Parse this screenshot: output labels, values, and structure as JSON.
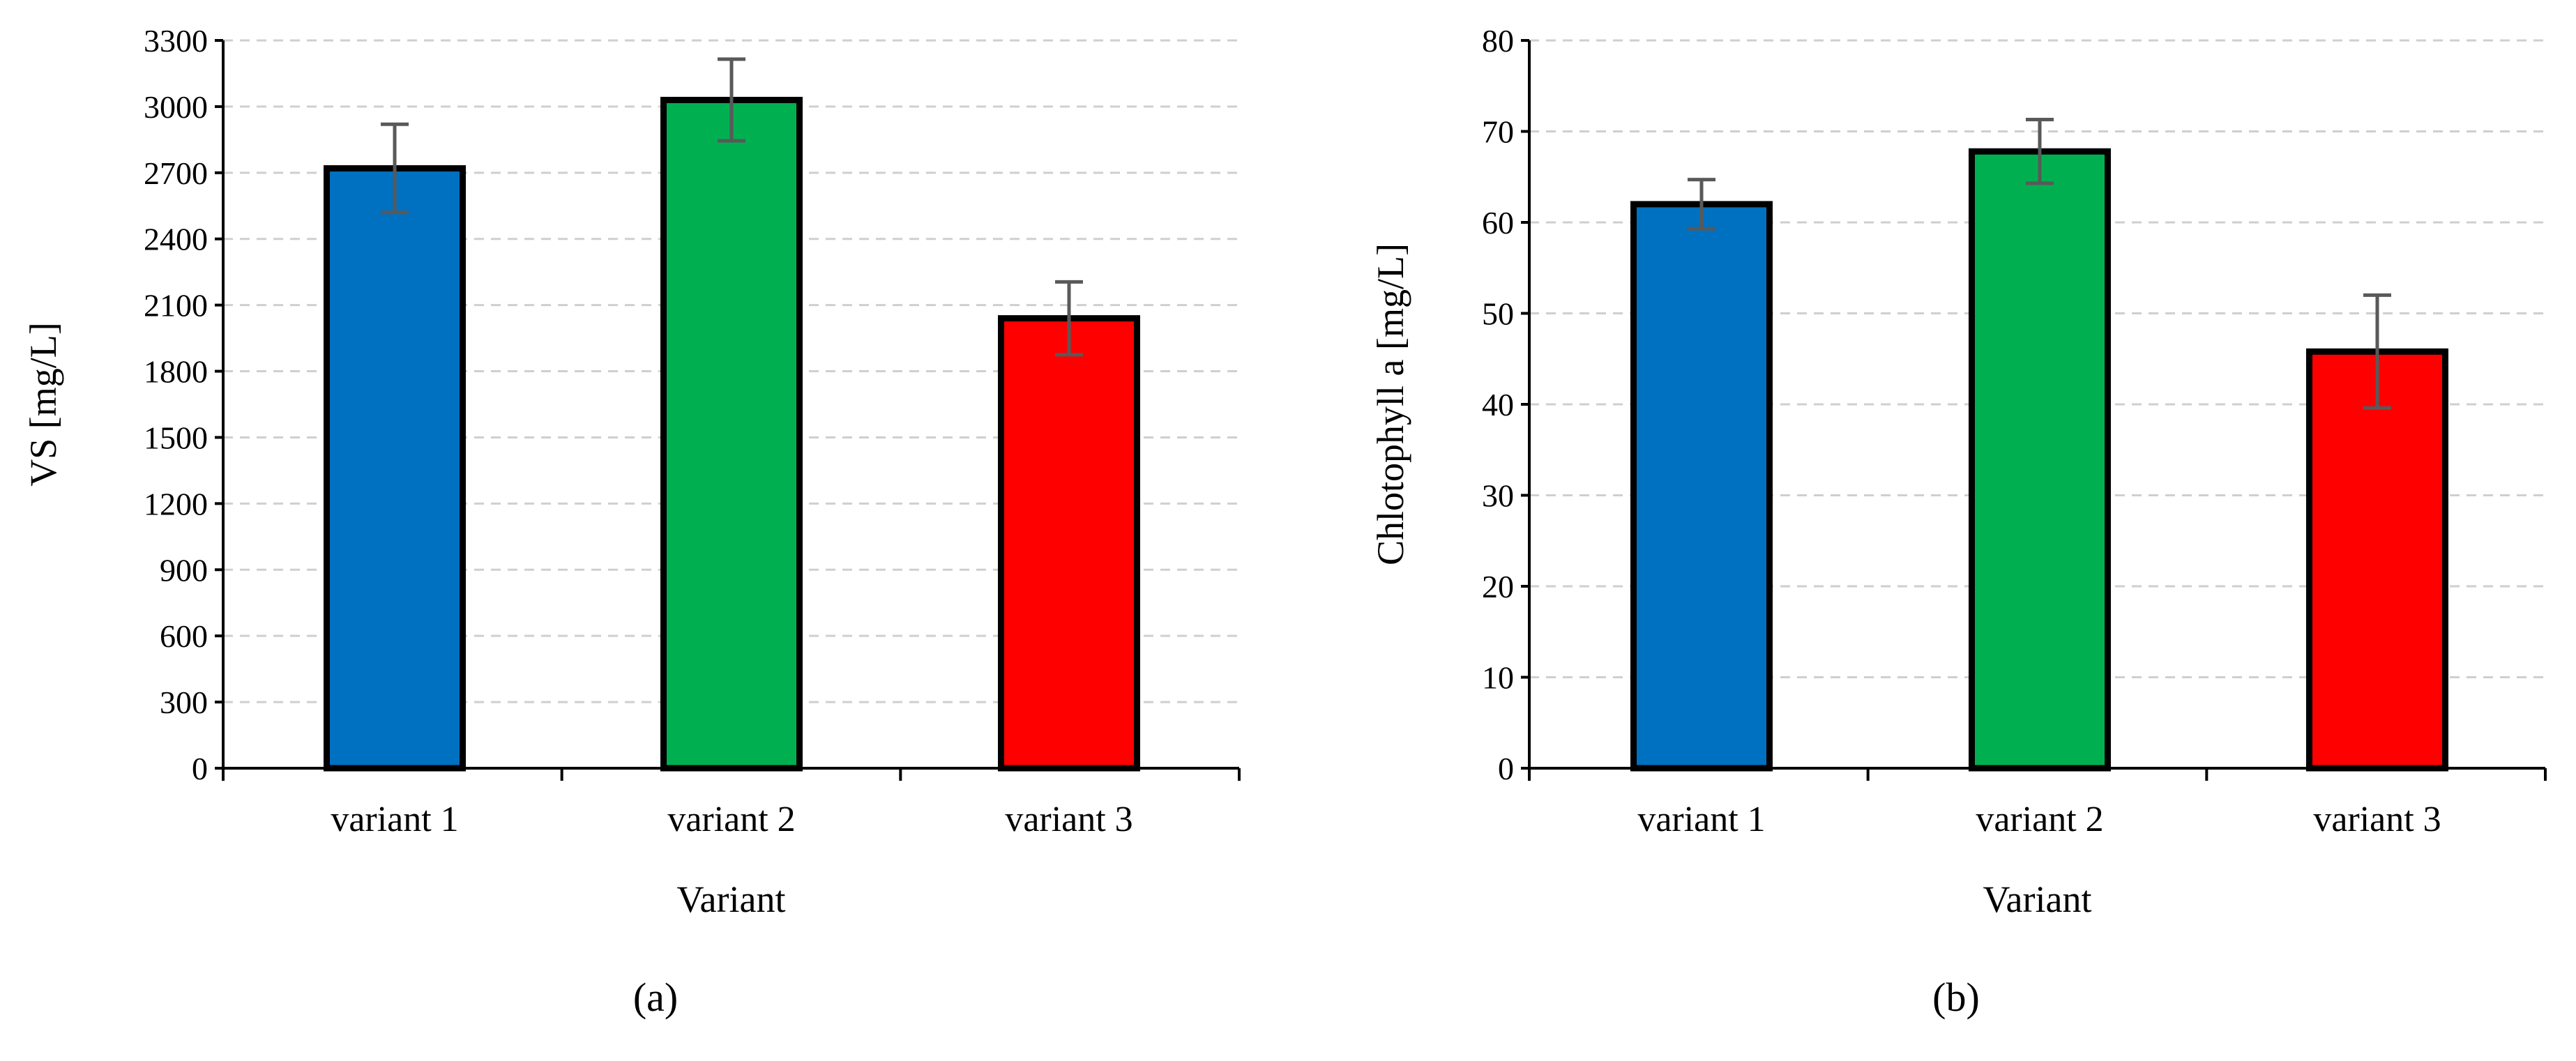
{
  "figure": {
    "panels": [
      "(a)",
      "(b)"
    ]
  },
  "chart_data": [
    {
      "type": "bar",
      "panel_label": "(a)",
      "categories": [
        "variant 1",
        "variant 2",
        "variant 3"
      ],
      "values": [
        2720,
        3030,
        2040
      ],
      "error": [
        200,
        185,
        165
      ],
      "colors": [
        "#0070C0",
        "#00B050",
        "#FF0000"
      ],
      "xlabel": "Variant",
      "ylabel": "VS [mg/L]",
      "ylim": [
        0,
        3300
      ],
      "yticks": [
        0,
        300,
        600,
        900,
        1200,
        1500,
        1800,
        2100,
        2400,
        2700,
        3000,
        3300
      ],
      "grid": true,
      "legend": "none"
    },
    {
      "type": "bar",
      "panel_label": "(b)",
      "categories": [
        "variant 1",
        "variant 2",
        "variant 3"
      ],
      "values": [
        62,
        67.8,
        45.8
      ],
      "error": [
        2.7,
        3.5,
        6.2
      ],
      "colors": [
        "#0070C0",
        "#00B050",
        "#FF0000"
      ],
      "xlabel": "Variant",
      "ylabel": "Chlotophyll a  [mg/L]",
      "ylim": [
        0,
        80
      ],
      "yticks": [
        0,
        10,
        20,
        30,
        40,
        50,
        60,
        70,
        80
      ],
      "grid": true,
      "legend": "none"
    }
  ]
}
